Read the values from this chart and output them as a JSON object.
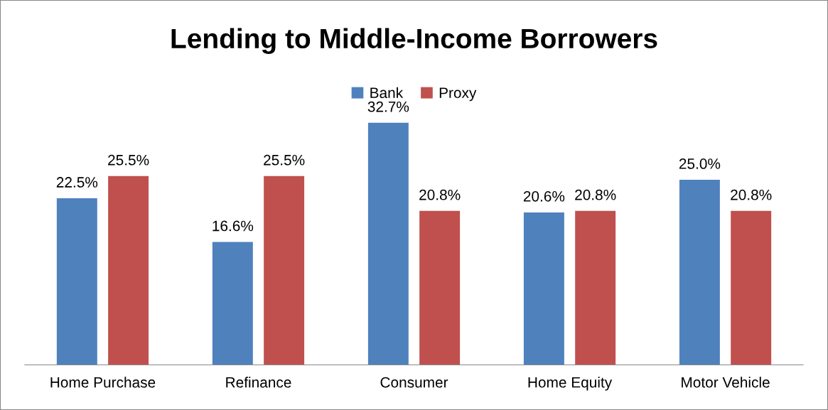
{
  "chart_data": {
    "type": "bar",
    "title": "Lending to Middle-Income Borrowers",
    "categories": [
      "Home Purchase",
      "Refinance",
      "Consumer",
      "Home Equity",
      "Motor Vehicle"
    ],
    "series": [
      {
        "name": "Bank",
        "color": "#4f81bd",
        "values": [
          22.5,
          16.6,
          32.7,
          20.6,
          25.0
        ],
        "value_labels": [
          "22.5%",
          "16.6%",
          "32.7%",
          "20.6%",
          "25.0%"
        ]
      },
      {
        "name": "Proxy",
        "color": "#c0504d",
        "values": [
          25.5,
          25.5,
          20.8,
          20.8,
          20.8
        ],
        "value_labels": [
          "25.5%",
          "25.5%",
          "20.8%",
          "20.8%",
          "20.8%"
        ]
      }
    ],
    "legend": "top",
    "grid": false
  }
}
